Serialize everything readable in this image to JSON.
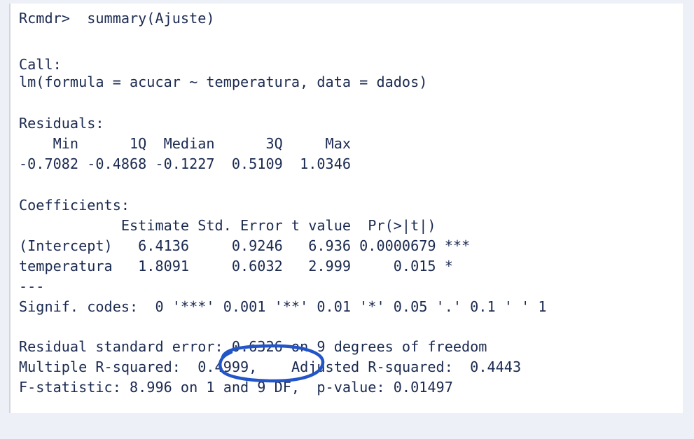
{
  "console": {
    "lines": [
      "Rcmdr>  summary(Ajuste)",
      "Call:",
      "lm(formula = acucar ~ temperatura, data = dados)",
      "Residuals:",
      "    Min      1Q  Median      3Q     Max ",
      "-0.7082 -0.4868 -0.1227  0.5109  1.0346 ",
      "Coefficients:",
      "            Estimate Std. Error t value  Pr(>|t|)    ",
      "(Intercept)   6.4136     0.9246   6.936 0.0000679 ***",
      "temperatura   1.8091     0.6032   2.999     0.015 *  ",
      "---",
      "Signif. codes:  0 '***' 0.001 '**' 0.01 '*' 0.05 '.' 0.1 ' ' 1",
      "Residual standard error: 0.6326 on 9 degrees of freedom",
      "Multiple R-squared:  0.4999,\tAdjusted R-squared:  0.4443 ",
      "F-statistic: 8.996 on 1 and 9 DF,  p-value: 0.01497"
    ]
  },
  "colors": {
    "page_background": "#eef0f7",
    "console_background": "#ffffff",
    "text": "#1b2a50",
    "annotation_stroke": "#2255c8"
  }
}
